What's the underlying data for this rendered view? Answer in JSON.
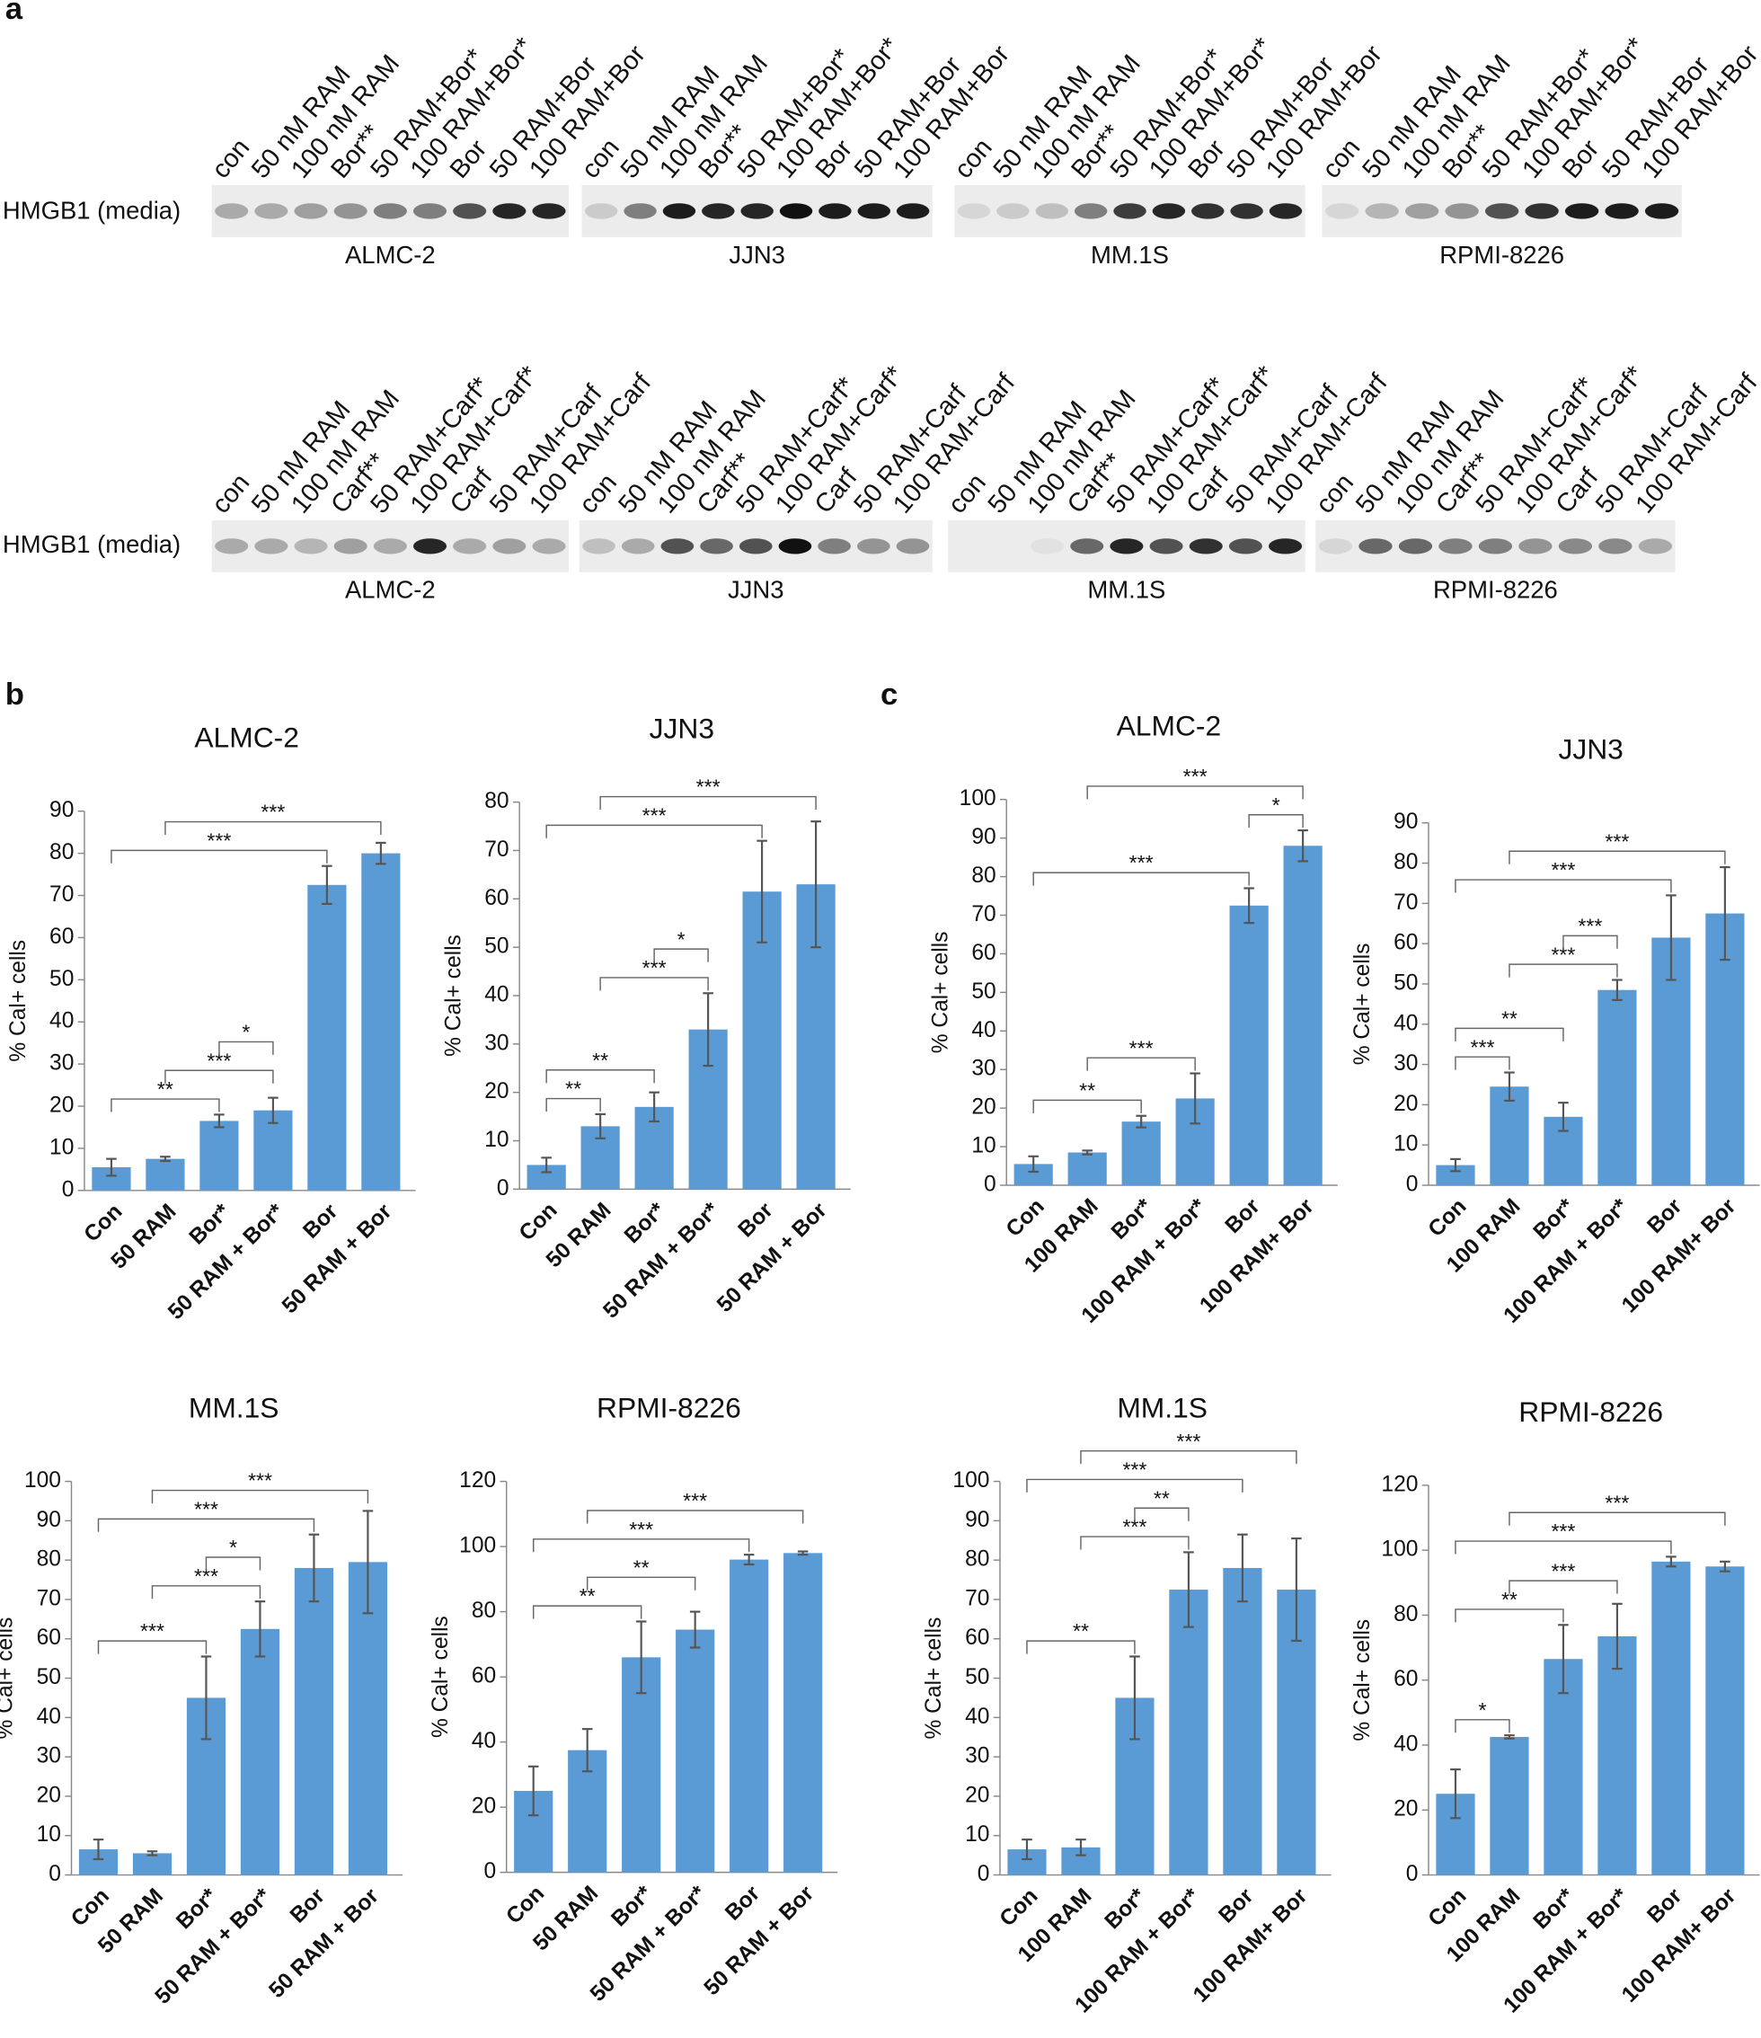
{
  "panel_labels": [
    "a",
    "b",
    "c"
  ],
  "blots": [
    {
      "row_label": "HMGB1 (media)",
      "lanes": [
        "con",
        "50 nM RAM",
        "100 nM RAM",
        "Bor**",
        "50 RAM+Bor*",
        "100 RAM+Bor*",
        "Bor",
        "50 RAM+Bor",
        "100 RAM+Bor"
      ],
      "cell_lines": [
        "ALMC-2",
        "JJN3",
        "MM.1S",
        "RPMI-8226"
      ]
    },
    {
      "row_label": "HMGB1 (media)",
      "lanes": [
        "con",
        "50 nM RAM",
        "100 nM RAM",
        "Carf**",
        "50 RAM+Carf*",
        "100 RAM+Carf*",
        "Carf",
        "50 RAM+Carf",
        "100 RAM+Carf"
      ],
      "cell_lines": [
        "ALMC-2",
        "JJN3",
        "MM.1S",
        "RPMI-8226"
      ]
    }
  ],
  "chart_data": [
    {
      "type": "bar",
      "title": "ALMC-2",
      "y_label": "% Cal+ cells",
      "color": "#5b9bd5",
      "categories": [
        "Con",
        "50 RAM",
        "Bor*",
        "50 RAM + Bor*",
        "Bor",
        "50 RAM + Bor"
      ],
      "values": [
        5.5,
        7.5,
        16.5,
        19,
        72.5,
        80
      ],
      "errors": [
        2,
        0.5,
        1.5,
        3,
        4.5,
        2.5
      ],
      "ylim": [
        0,
        90
      ],
      "yticks": [
        0,
        10,
        20,
        30,
        40,
        50,
        60,
        70,
        80,
        90
      ],
      "brackets": [
        {
          "label": "**",
          "from": 0,
          "to": 2
        },
        {
          "label": "***",
          "from": 1,
          "to": 3
        },
        {
          "label": "*",
          "from": 2,
          "to": 3
        },
        {
          "label": "***",
          "from": 0,
          "to": 4
        },
        {
          "label": "***",
          "from": 1,
          "to": 5
        }
      ]
    },
    {
      "type": "bar",
      "title": "JJN3",
      "y_label": "% Cal+ cells",
      "color": "#5b9bd5",
      "categories": [
        "Con",
        "50 RAM",
        "Bor*",
        "50 RAM + Bor*",
        "Bor",
        "50 RAM + Bor"
      ],
      "values": [
        5,
        13,
        17,
        33,
        61.5,
        63
      ],
      "errors": [
        1.5,
        2.5,
        3,
        7.5,
        10.5,
        13
      ],
      "ylim": [
        0,
        80
      ],
      "yticks": [
        0,
        10,
        20,
        30,
        40,
        50,
        60,
        70,
        80
      ],
      "brackets": [
        {
          "label": "**",
          "from": 0,
          "to": 1
        },
        {
          "label": "**",
          "from": 0,
          "to": 2
        },
        {
          "label": "***",
          "from": 1,
          "to": 3
        },
        {
          "label": "*",
          "from": 2,
          "to": 3
        },
        {
          "label": "***",
          "from": 0,
          "to": 4
        },
        {
          "label": "***",
          "from": 1,
          "to": 5
        }
      ]
    },
    {
      "type": "bar",
      "title": "MM.1S",
      "y_label": "% Cal+ cells",
      "color": "#5b9bd5",
      "categories": [
        "Con",
        "50 RAM",
        "Bor*",
        "50 RAM + Bor*",
        "Bor",
        "50 RAM + Bor"
      ],
      "values": [
        6.5,
        5.5,
        45,
        62.5,
        78,
        79.5
      ],
      "errors": [
        2.5,
        0.5,
        10.5,
        7,
        8.5,
        13
      ],
      "ylim": [
        0,
        100
      ],
      "yticks": [
        0,
        10,
        20,
        30,
        40,
        50,
        60,
        70,
        80,
        90,
        100
      ],
      "brackets": [
        {
          "label": "***",
          "from": 0,
          "to": 2
        },
        {
          "label": "***",
          "from": 1,
          "to": 3
        },
        {
          "label": "*",
          "from": 2,
          "to": 3
        },
        {
          "label": "***",
          "from": 0,
          "to": 4
        },
        {
          "label": "***",
          "from": 1,
          "to": 5
        }
      ]
    },
    {
      "type": "bar",
      "title": "RPMI-8226",
      "y_label": "% Cal+ cells",
      "color": "#5b9bd5",
      "categories": [
        "Con",
        "50 RAM",
        "Bor*",
        "50 RAM + Bor*",
        "Bor",
        "50 RAM + Bor"
      ],
      "values": [
        25,
        37.5,
        66,
        74.5,
        96,
        98
      ],
      "errors": [
        7.5,
        6.5,
        11,
        5.5,
        1.5,
        0.5
      ],
      "ylim": [
        0,
        120
      ],
      "yticks": [
        0,
        20,
        40,
        60,
        80,
        100,
        120
      ],
      "brackets": [
        {
          "label": "**",
          "from": 0,
          "to": 2
        },
        {
          "label": "**",
          "from": 1,
          "to": 3
        },
        {
          "label": "***",
          "from": 0,
          "to": 4
        },
        {
          "label": "***",
          "from": 1,
          "to": 5
        }
      ]
    },
    {
      "type": "bar",
      "title": "ALMC-2",
      "y_label": "% Cal+ cells",
      "color": "#5b9bd5",
      "categories": [
        "Con",
        "100 RAM",
        "Bor*",
        "100 RAM + Bor*",
        "Bor",
        "100 RAM+ Bor"
      ],
      "values": [
        5.5,
        8.5,
        16.5,
        22.5,
        72.5,
        88
      ],
      "errors": [
        2,
        0.5,
        1.5,
        6.5,
        4.5,
        4
      ],
      "ylim": [
        0,
        100
      ],
      "yticks": [
        0,
        10,
        20,
        30,
        40,
        50,
        60,
        70,
        80,
        90,
        100
      ],
      "brackets": [
        {
          "label": "**",
          "from": 0,
          "to": 2
        },
        {
          "label": "***",
          "from": 1,
          "to": 3
        },
        {
          "label": "***",
          "from": 0,
          "to": 4
        },
        {
          "label": "*",
          "from": 4,
          "to": 5
        },
        {
          "label": "***",
          "from": 1,
          "to": 5
        }
      ]
    },
    {
      "type": "bar",
      "title": "JJN3",
      "y_label": "% Cal+ cells",
      "color": "#5b9bd5",
      "categories": [
        "Con",
        "100 RAM",
        "Bor*",
        "100 RAM + Bor*",
        "Bor",
        "100 RAM+ Bor"
      ],
      "values": [
        5,
        24.5,
        17,
        48.5,
        61.5,
        67.5
      ],
      "errors": [
        1.5,
        3.5,
        3.5,
        2.5,
        10.5,
        11.5
      ],
      "ylim": [
        0,
        90
      ],
      "yticks": [
        0,
        10,
        20,
        30,
        40,
        50,
        60,
        70,
        80,
        90
      ],
      "brackets": [
        {
          "label": "***",
          "from": 0,
          "to": 1
        },
        {
          "label": "**",
          "from": 0,
          "to": 2
        },
        {
          "label": "***",
          "from": 1,
          "to": 3
        },
        {
          "label": "***",
          "from": 2,
          "to": 3
        },
        {
          "label": "***",
          "from": 0,
          "to": 4
        },
        {
          "label": "***",
          "from": 1,
          "to": 5
        }
      ]
    },
    {
      "type": "bar",
      "title": "MM.1S",
      "y_label": "% Cal+ cells",
      "color": "#5b9bd5",
      "categories": [
        "Con",
        "100 RAM",
        "Bor*",
        "100 RAM + Bor*",
        "Bor",
        "100 RAM+ Bor"
      ],
      "values": [
        6.5,
        7,
        45,
        72.5,
        78,
        72.5
      ],
      "errors": [
        2.5,
        2,
        10.5,
        9.5,
        8.5,
        13
      ],
      "ylim": [
        0,
        100
      ],
      "yticks": [
        0,
        10,
        20,
        30,
        40,
        50,
        60,
        70,
        80,
        90,
        100
      ],
      "brackets": [
        {
          "label": "**",
          "from": 0,
          "to": 2
        },
        {
          "label": "***",
          "from": 1,
          "to": 3
        },
        {
          "label": "**",
          "from": 2,
          "to": 3
        },
        {
          "label": "***",
          "from": 0,
          "to": 4
        },
        {
          "label": "***",
          "from": 1,
          "to": 5
        }
      ]
    },
    {
      "type": "bar",
      "title": "RPMI-8226",
      "y_label": "% Cal+ cells",
      "color": "#5b9bd5",
      "categories": [
        "Con",
        "100 RAM",
        "Bor*",
        "100 RAM + Bor*",
        "Bor",
        "100 RAM+ Bor"
      ],
      "values": [
        25,
        42.5,
        66.5,
        73.5,
        96.5,
        95
      ],
      "errors": [
        7.5,
        0.5,
        10.5,
        10,
        1.5,
        1.5
      ],
      "ylim": [
        0,
        120
      ],
      "yticks": [
        0,
        20,
        40,
        60,
        80,
        100,
        120
      ],
      "brackets": [
        {
          "label": "*",
          "from": 0,
          "to": 1
        },
        {
          "label": "**",
          "from": 0,
          "to": 2
        },
        {
          "label": "***",
          "from": 1,
          "to": 3
        },
        {
          "label": "***",
          "from": 0,
          "to": 4
        },
        {
          "label": "***",
          "from": 1,
          "to": 5
        }
      ]
    }
  ]
}
